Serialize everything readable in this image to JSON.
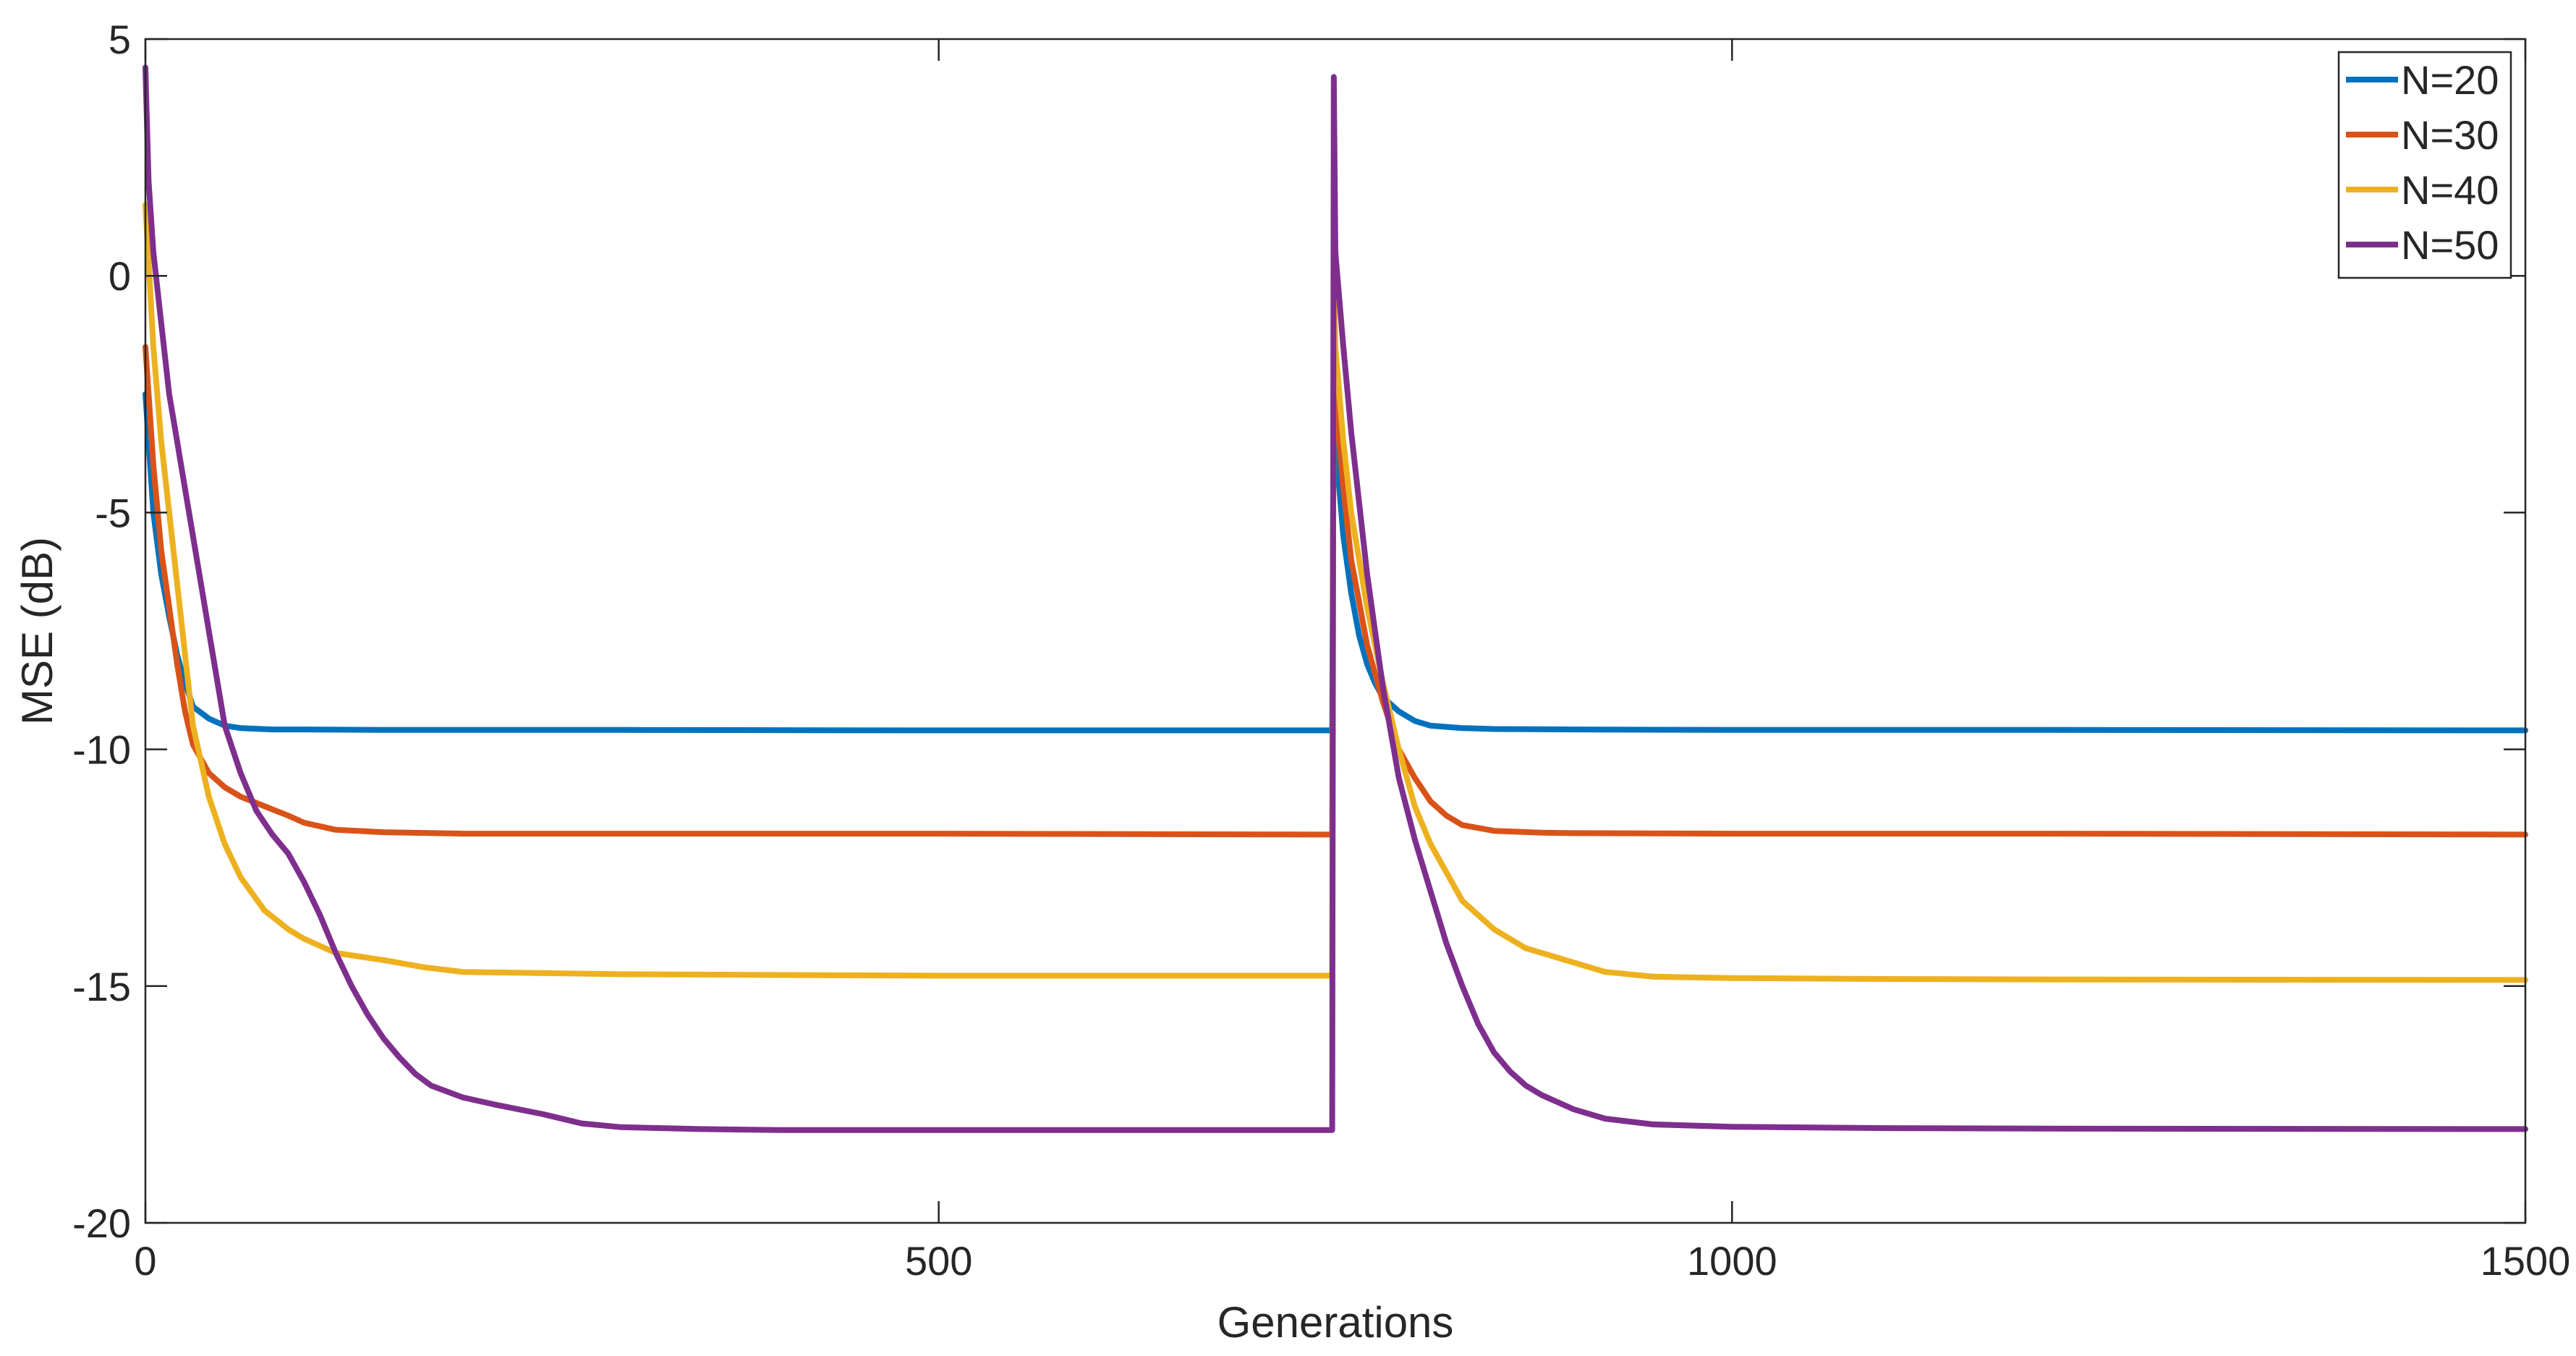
{
  "chart_data": {
    "type": "line",
    "title": "",
    "xlabel": "Generations",
    "ylabel": "MSE (dB)",
    "xlim": [
      0,
      1500
    ],
    "ylim": [
      -20,
      5
    ],
    "xticks": [
      0,
      500,
      1000,
      1500
    ],
    "yticks": [
      5,
      0,
      -5,
      -10,
      -15,
      -20
    ],
    "xtick_labels": [
      "0",
      "500",
      "1000",
      "1500"
    ],
    "ytick_labels": [
      "5",
      "0",
      "-5",
      "-10",
      "-15",
      "-20"
    ],
    "grid": false,
    "legend_position": "top-right",
    "series": [
      {
        "name": "N=20",
        "color": "#0072BD",
        "x": [
          0,
          5,
          10,
          15,
          20,
          25,
          30,
          40,
          50,
          60,
          80,
          100,
          150,
          200,
          300,
          500,
          748,
          749,
          750,
          755,
          760,
          765,
          770,
          775,
          780,
          790,
          800,
          810,
          830,
          850,
          900,
          1000,
          1200,
          1500
        ],
        "y": [
          -2.5,
          -5.0,
          -6.3,
          -7.2,
          -8.0,
          -8.6,
          -9.1,
          -9.35,
          -9.5,
          -9.55,
          -9.58,
          -9.58,
          -9.59,
          -9.59,
          -9.59,
          -9.6,
          -9.6,
          -2.0,
          -3.5,
          -5.5,
          -6.7,
          -7.6,
          -8.2,
          -8.6,
          -8.9,
          -9.2,
          -9.4,
          -9.5,
          -9.55,
          -9.57,
          -9.58,
          -9.59,
          -9.59,
          -9.6
        ]
      },
      {
        "name": "N=30",
        "color": "#D95319",
        "x": [
          0,
          5,
          10,
          15,
          20,
          25,
          30,
          40,
          50,
          60,
          75,
          90,
          100,
          120,
          150,
          200,
          300,
          500,
          748,
          749,
          750,
          755,
          760,
          770,
          780,
          790,
          800,
          810,
          820,
          830,
          850,
          880,
          900,
          1000,
          1200,
          1500
        ],
        "y": [
          -1.5,
          -4.0,
          -5.8,
          -7.0,
          -8.2,
          -9.2,
          -9.9,
          -10.5,
          -10.8,
          -11.0,
          -11.2,
          -11.4,
          -11.55,
          -11.7,
          -11.75,
          -11.78,
          -11.78,
          -11.78,
          -11.8,
          -0.5,
          -2.5,
          -4.5,
          -6.0,
          -7.8,
          -9.0,
          -10.0,
          -10.6,
          -11.1,
          -11.4,
          -11.6,
          -11.72,
          -11.76,
          -11.77,
          -11.78,
          -11.78,
          -11.8
        ]
      },
      {
        "name": "N=40",
        "color": "#EDB120",
        "x": [
          0,
          5,
          10,
          15,
          20,
          25,
          30,
          40,
          50,
          60,
          75,
          90,
          100,
          120,
          150,
          175,
          200,
          300,
          500,
          748,
          749,
          750,
          755,
          760,
          770,
          780,
          790,
          800,
          810,
          820,
          830,
          850,
          870,
          900,
          920,
          950,
          1000,
          1100,
          1200,
          1500
        ],
        "y": [
          1.5,
          -1.5,
          -3.5,
          -5.0,
          -6.5,
          -8.0,
          -9.5,
          -11.0,
          -12.0,
          -12.7,
          -13.4,
          -13.8,
          -14.0,
          -14.3,
          -14.45,
          -14.6,
          -14.7,
          -14.75,
          -14.78,
          -14.78,
          0.0,
          -1.5,
          -3.5,
          -5.0,
          -7.0,
          -8.6,
          -10.0,
          -11.2,
          -12.0,
          -12.6,
          -13.2,
          -13.8,
          -14.2,
          -14.5,
          -14.7,
          -14.8,
          -14.83,
          -14.85,
          -14.86,
          -14.87
        ]
      },
      {
        "name": "N=50",
        "color": "#7E2F8E",
        "x": [
          0,
          2,
          5,
          10,
          15,
          20,
          25,
          30,
          35,
          40,
          45,
          50,
          60,
          70,
          80,
          90,
          100,
          110,
          120,
          130,
          140,
          150,
          160,
          170,
          180,
          200,
          220,
          250,
          275,
          300,
          350,
          400,
          500,
          748,
          749,
          750,
          755,
          760,
          765,
          770,
          775,
          780,
          790,
          800,
          810,
          820,
          830,
          840,
          850,
          860,
          870,
          880,
          890,
          900,
          920,
          950,
          1000,
          1100,
          1200,
          1500
        ],
        "y": [
          4.4,
          2.0,
          0.5,
          -1.0,
          -2.5,
          -3.5,
          -4.5,
          -5.5,
          -6.5,
          -7.5,
          -8.5,
          -9.5,
          -10.5,
          -11.3,
          -11.8,
          -12.2,
          -12.8,
          -13.5,
          -14.3,
          -15.0,
          -15.6,
          -16.1,
          -16.5,
          -16.85,
          -17.1,
          -17.35,
          -17.5,
          -17.7,
          -17.9,
          -17.98,
          -18.02,
          -18.04,
          -18.04,
          -18.04,
          4.2,
          0.5,
          -1.5,
          -3.3,
          -4.8,
          -6.3,
          -7.5,
          -8.7,
          -10.6,
          -11.9,
          -13.0,
          -14.1,
          -15.0,
          -15.8,
          -16.4,
          -16.8,
          -17.1,
          -17.3,
          -17.45,
          -17.6,
          -17.8,
          -17.92,
          -17.97,
          -18.0,
          -18.01,
          -18.02
        ]
      }
    ]
  }
}
